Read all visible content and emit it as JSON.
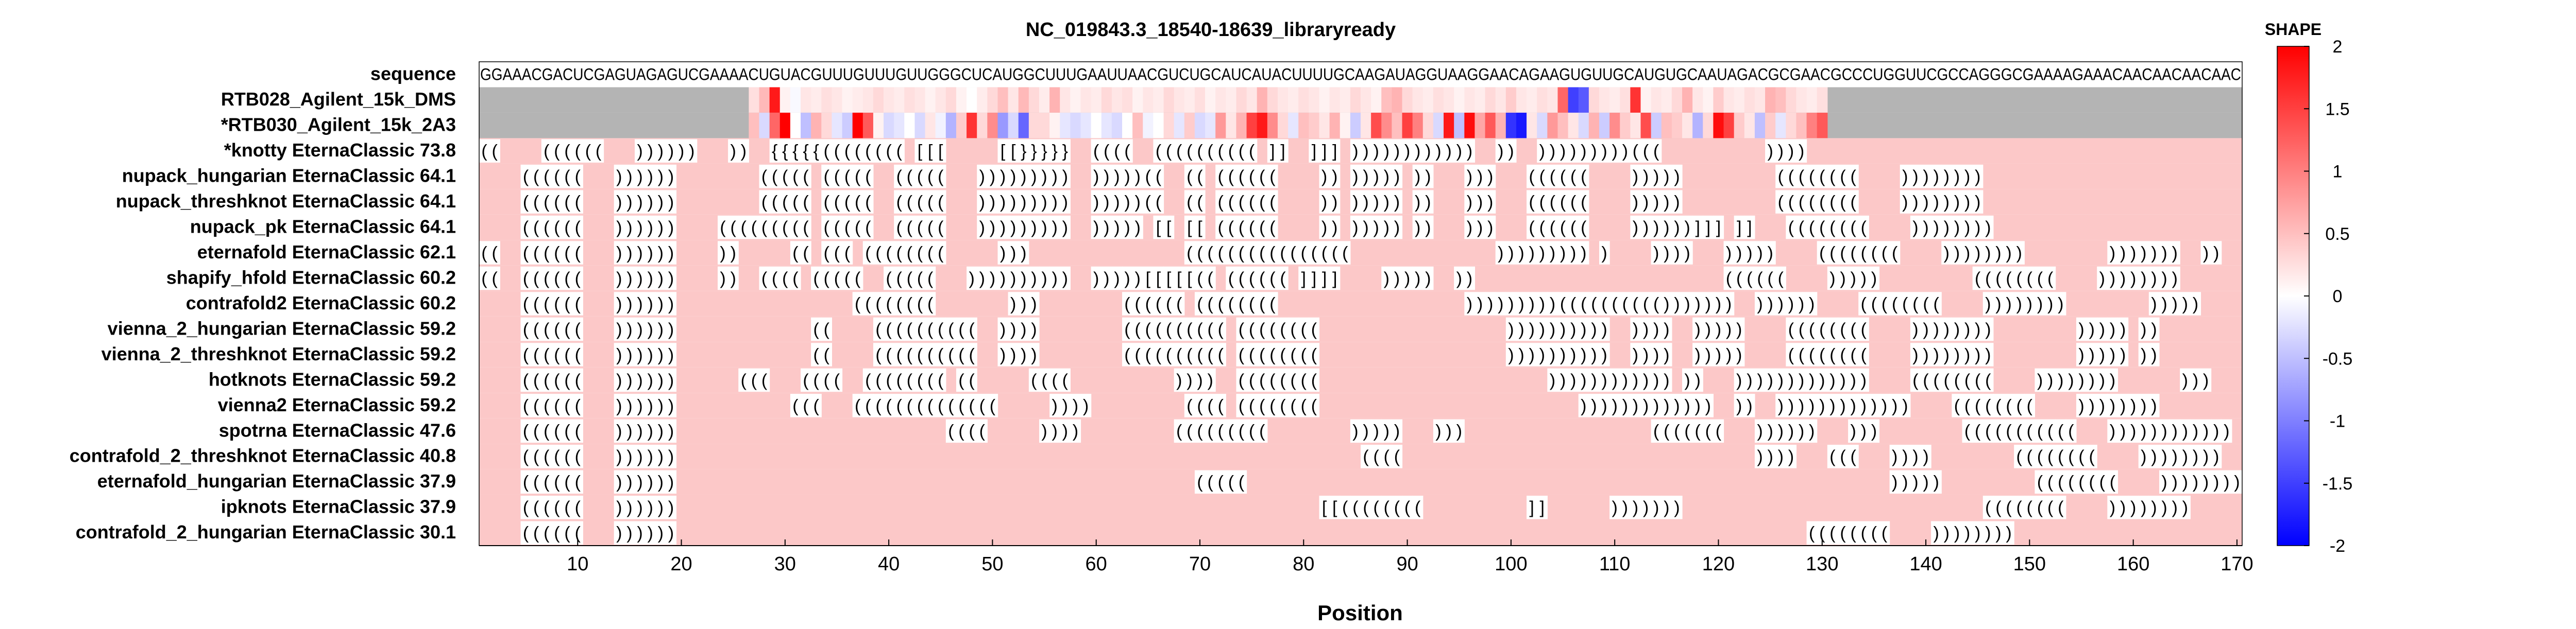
{
  "chart_data": {
    "type": "heatmap",
    "title": "NC_019843.3_18540-18639_libraryready",
    "xlabel": "Position",
    "xlim": [
      1,
      171
    ],
    "xticks": [
      10,
      20,
      30,
      40,
      50,
      60,
      70,
      80,
      90,
      100,
      110,
      120,
      130,
      140,
      150,
      160,
      170
    ],
    "sequence_label": "sequence",
    "sequence": "GGAAACGACUCGAGUAGAGUCGAAAACUGUACGUUUGUUUGUUGGGCUCAUGGCUUUGAAUUAACGUCUGCAUCAUACUUUUGCAAGAUAGGUAAGGAACAGAAGUGUUGCAUGUGCAAUAGACGCGAACGCCCUGGUUCGCCAGGGCGAAAAGAAACAACAACAACAAC",
    "data_range": [
      27,
      130
    ],
    "shape_rows": [
      {
        "label": "RTB028_Agilent_15k_DMS",
        "values": [
          0.25,
          0.55,
          1.8,
          0.1,
          -0.05,
          0.2,
          0.15,
          0.25,
          0.2,
          0.1,
          0.15,
          0.2,
          0.3,
          0.2,
          0.15,
          0.25,
          0.2,
          0.1,
          0.2,
          0.3,
          0.1,
          0.0,
          0.15,
          0.3,
          0.5,
          0.2,
          0.55,
          0.3,
          0.15,
          0.6,
          0.2,
          0.1,
          0.2,
          0.15,
          0.3,
          0.2,
          0.25,
          0.1,
          0.2,
          0.15,
          0.3,
          0.2,
          0.15,
          0.25,
          0.1,
          0.2,
          0.15,
          0.3,
          0.2,
          0.6,
          0.3,
          0.2,
          0.15,
          0.25,
          0.2,
          0.1,
          0.2,
          0.15,
          0.3,
          0.2,
          0.1,
          0.5,
          0.6,
          0.3,
          0.2,
          0.15,
          0.25,
          0.2,
          0.1,
          0.2,
          0.15,
          0.3,
          0.2,
          0.4,
          0.2,
          0.15,
          0.25,
          0.2,
          1.2,
          -1.5,
          -1.3,
          0.3,
          0.2,
          0.15,
          0.25,
          1.6,
          0.1,
          0.2,
          0.15,
          0.3,
          0.6,
          0.2,
          0.1,
          0.4,
          0.2,
          0.15,
          0.25,
          0.2,
          0.6,
          0.5,
          0.3,
          0.2,
          0.15,
          0.25
        ]
      },
      {
        "label": "*RTB030_Agilent_15k_2A3",
        "values": [
          0.5,
          -0.3,
          1.2,
          2.0,
          0.0,
          -0.5,
          0.6,
          0.3,
          -0.2,
          -0.4,
          2.0,
          1.3,
          0.1,
          -0.3,
          -0.2,
          0.0,
          -0.3,
          0.2,
          -0.1,
          -0.6,
          0.4,
          1.6,
          0.3,
          0.9,
          -0.8,
          -0.3,
          -1.2,
          0.3,
          0.3,
          0.1,
          -0.2,
          -0.3,
          -0.2,
          0.0,
          -0.2,
          -0.3,
          0.0,
          0.5,
          -0.1,
          0.0,
          0.3,
          -0.2,
          0.4,
          -0.3,
          -0.2,
          0.8,
          0.2,
          0.6,
          1.5,
          1.8,
          0.9,
          0.3,
          -0.2,
          0.5,
          0.4,
          0.2,
          0.6,
          0.1,
          -0.4,
          0.2,
          1.4,
          0.9,
          0.5,
          1.5,
          1.0,
          0.3,
          -0.3,
          1.8,
          -0.5,
          1.9,
          0.7,
          1.3,
          0.6,
          -1.6,
          -1.8,
          0.2,
          -0.3,
          0.8,
          0.5,
          0.2,
          -0.3,
          0.6,
          -0.4,
          0.9,
          0.4,
          0.2,
          1.4,
          -0.4,
          0.5,
          0.4,
          0.2,
          -0.6,
          0.3,
          1.9,
          1.5,
          0.4,
          0.2,
          -0.5,
          0.4,
          -0.2,
          0.3,
          0.5,
          1.0,
          1.3
        ]
      }
    ],
    "structure_rows": [
      {
        "label": "*knotty EternaClassic  73.8",
        "structure": "((....((((((...))))))...))..{{{{{((((((((.[[[.....[[}}}}}..((((..((((((((((.]]..]]].))))))))))))..))..)))))))))(((..........)))).................................."
      },
      {
        "label": "nupack_hungarian EternaClassic  64.1",
        "structure": "....((((((...))))))........(((((.(((((..(((((...)))))))))..)))))((..((.((((((....)).))))).))...)))...((((((....))))).........((((((((....))))))))......................"
      },
      {
        "label": "nupack_threshknot EternaClassic  64.1",
        "structure": "....((((((...))))))........(((((.(((((..(((((...)))))))))..)))))((..((.((((((....)).))))).))...)))...((((((....))))).........((((((((....))))))))......................"
      },
      {
        "label": "nupack_pk EternaClassic  64.1",
        "structure": "....((((((...))))))....(((((((((.(((((..(((((...)))))))))..))))).[[.[[.((((((....)).))))).))...)))...((((((....))))))]]].]]...((((((((....))))))))......................"
      },
      {
        "label": "eternafold EternaClassic  62.1",
        "structure": "((..((((((...))))))....)).....((.(((.((((((((.....)))...............((((((((((((((((..............))))))))).)....))))...)))))....((((((((....))))))))........)))))))..))"
      },
      {
        "label": "shapify_hfold EternaClassic  60.2",
        "structure": "((..((((((...))))))....))..((((.(((((..(((((...))))))))))..)))))[[[[[((.((((((.]]]]....)))))..))........................((((((....))))).........((((((((....))))))))......................"
      },
      {
        "label": "contrafold2 EternaClassic  60.2",
        "structure": "....((((((...)))))).................((((((((.......)))........((((((.((((((((..................)))))))))(((((((((()))))))..))))))....((((((((....))))))))........)))))...."
      },
      {
        "label": "vienna_2_hungarian EternaClassic  59.2",
        "structure": "....((((((...)))))).............((....((((((((((..))))........((((((((((.((((((((..................))))))))))..))))..)))))....((((((((....))))))))........))))).))..."
      },
      {
        "label": "vienna_2_threshknot EternaClassic  59.2",
        "structure": "....((((((...)))))).............((....((((((((((..))))........((((((((((.((((((((..................))))))))))..))))..)))))....((((((((....))))))))........))))).))..."
      },
      {
        "label": "hotknots EternaClassic  59.2",
        "structure": "....((((((...))))))......(((...((((..((((((((.((.....((((..........))))..((((((((......................)))))))))))).))...)))))))))))))....((((((((....))))))))......))).........."
      },
      {
        "label": "vienna2 EternaClassic  59.2",
        "structure": "....((((((...))))))...........(((...((((((((((((((.....)))).........((((.((((((((.........................)))))))))))))..))..)))))))))))))....((((((((....)))))))).............."
      },
      {
        "label": "spotrna EternaClassic  47.6",
        "structure": "....((((((...))))))..........................((((.....)))).........(((((((((........)))))...)))..................(((((((...))))))...)))........(((((((((((...))))))))))))..................."
      },
      {
        "label": "contrafold_2_threshknot EternaClassic  40.8",
        "structure": "....((((((...))))))..................................................................((((..................................))))...(((...))))........((((((((....))))))))......................"
      },
      {
        "label": "eternafold_hungarian EternaClassic  37.9",
        "structure": "....((((((...))))))..................................................(((((..............................................................))))).........((((((((....))))))))......................"
      },
      {
        "label": "ipknots EternaClassic  37.9",
        "structure": "....((((((...))))))..............................................................[[((((((((..........]]......))))))).............................((((((((....))))))))......................"
      },
      {
        "label": "contrafold_2_hungarian EternaClassic  30.1",
        "structure": "....((((((...)))))).............................................................................................................((((((((....))))))))......................"
      }
    ],
    "colorbar": {
      "label": "SHAPE",
      "range": [
        -2,
        2
      ],
      "ticks": [
        2,
        1.5,
        1,
        0.5,
        0,
        -0.5,
        -1,
        -1.5,
        -2
      ],
      "tick_labels": [
        "2",
        "1.5",
        "1",
        "0.5",
        "0",
        "-0.5",
        "-1",
        "-1.5",
        "-2"
      ]
    },
    "colors": {
      "positive": "#ff0000",
      "neutral": "#ffffff",
      "negative": "#0000ff",
      "no_data": "#b4b4b4",
      "unpaired_background": "#fcc8c8",
      "paired_cell": "#ffffff"
    }
  }
}
